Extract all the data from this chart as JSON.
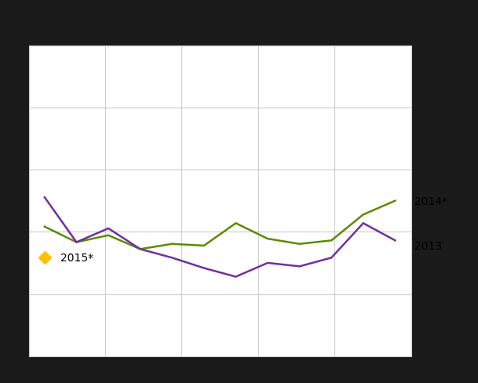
{
  "x": [
    1,
    2,
    3,
    4,
    5,
    6,
    7,
    8,
    9,
    10,
    11,
    12
  ],
  "green_2014": [
    75,
    66,
    70,
    62,
    65,
    64,
    77,
    68,
    65,
    67,
    82,
    90
  ],
  "purple_2013": [
    92,
    66,
    74,
    62,
    57,
    51,
    46,
    54,
    52,
    57,
    77,
    67
  ],
  "orange_2015_x": [
    1
  ],
  "orange_2015_y": [
    57
  ],
  "color_green": "#5b8c00",
  "color_purple": "#7030a0",
  "color_orange": "#ffc000",
  "label_2014": "2014*",
  "label_2013": "2013",
  "label_2015": "2015*",
  "outer_bg": "#1a1a1a",
  "plot_bg": "#ffffff",
  "grid_color": "#cccccc",
  "ylim_bottom": 0,
  "ylim_top": 180,
  "xlim_left": 0.5,
  "xlim_right": 12.5,
  "line_width": 1.8,
  "font_size": 10
}
